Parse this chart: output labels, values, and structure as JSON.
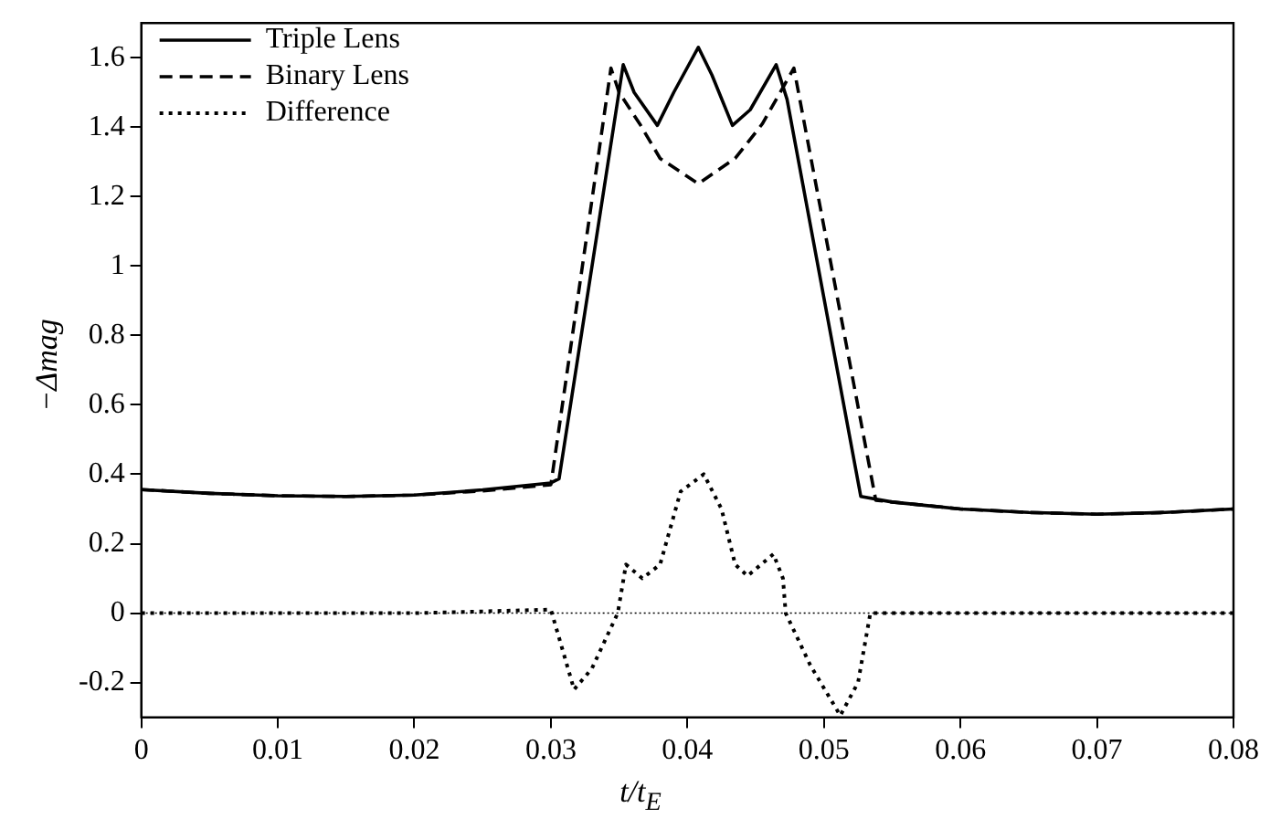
{
  "chart_data": {
    "type": "line",
    "xlabel": "t/t$_{E}$",
    "ylabel": "−Δmag",
    "xlim": [
      0,
      0.08
    ],
    "ylim": [
      -0.3,
      1.7
    ],
    "xticks": [
      0,
      0.01,
      0.02,
      0.03,
      0.04,
      0.05,
      0.06,
      0.07,
      0.08
    ],
    "yticks": [
      -0.2,
      0,
      0.2,
      0.4,
      0.6,
      0.8,
      1,
      1.2,
      1.4,
      1.6
    ],
    "grid": false,
    "legend": "top left",
    "marker": "none",
    "ref_lines": [
      {
        "axis": "y",
        "value": 0,
        "label": null,
        "color": "#000000",
        "line_style": "dotted"
      }
    ],
    "series": [
      {
        "name": "Triple Lens",
        "color": "#000000",
        "line_style": "solid",
        "x": [
          0,
          0.005,
          0.01,
          0.015,
          0.02,
          0.025,
          0.03,
          0.0306,
          0.0353,
          0.0361,
          0.0378,
          0.039,
          0.0408,
          0.0418,
          0.0433,
          0.0446,
          0.0465,
          0.0473,
          0.0527,
          0.055,
          0.06,
          0.065,
          0.07,
          0.075,
          0.08
        ],
        "values": [
          0.356,
          0.345,
          0.338,
          0.336,
          0.34,
          0.355,
          0.375,
          0.387,
          1.58,
          1.5,
          1.405,
          1.5,
          1.63,
          1.55,
          1.405,
          1.45,
          1.58,
          1.48,
          0.336,
          0.32,
          0.3,
          0.29,
          0.285,
          0.29,
          0.3
        ]
      },
      {
        "name": "Binary Lens",
        "color": "#000000",
        "line_style": "dashed",
        "x": [
          0,
          0.005,
          0.01,
          0.015,
          0.02,
          0.025,
          0.03,
          0.0344,
          0.035,
          0.0365,
          0.038,
          0.0408,
          0.0435,
          0.0455,
          0.0478,
          0.0538,
          0.055,
          0.06,
          0.065,
          0.07,
          0.075,
          0.08
        ],
        "values": [
          0.356,
          0.345,
          0.338,
          0.336,
          0.34,
          0.352,
          0.37,
          1.57,
          1.5,
          1.41,
          1.31,
          1.237,
          1.31,
          1.41,
          1.57,
          0.325,
          0.32,
          0.3,
          0.29,
          0.285,
          0.29,
          0.3
        ]
      },
      {
        "name": "Difference",
        "color": "#000000",
        "line_style": "dotted",
        "x": [
          0,
          0.01,
          0.02,
          0.03,
          0.0317,
          0.033,
          0.0349,
          0.0355,
          0.0367,
          0.038,
          0.0395,
          0.0412,
          0.0425,
          0.0435,
          0.0444,
          0.0463,
          0.047,
          0.0472,
          0.049,
          0.0512,
          0.0525,
          0.0534,
          0.06,
          0.07,
          0.08
        ],
        "values": [
          0,
          0,
          0,
          0.01,
          -0.22,
          -0.16,
          0,
          0.14,
          0.1,
          0.14,
          0.35,
          0.4,
          0.3,
          0.14,
          0.107,
          0.17,
          0.1,
          0,
          -0.15,
          -0.295,
          -0.2,
          0,
          0,
          0,
          0
        ]
      }
    ]
  }
}
